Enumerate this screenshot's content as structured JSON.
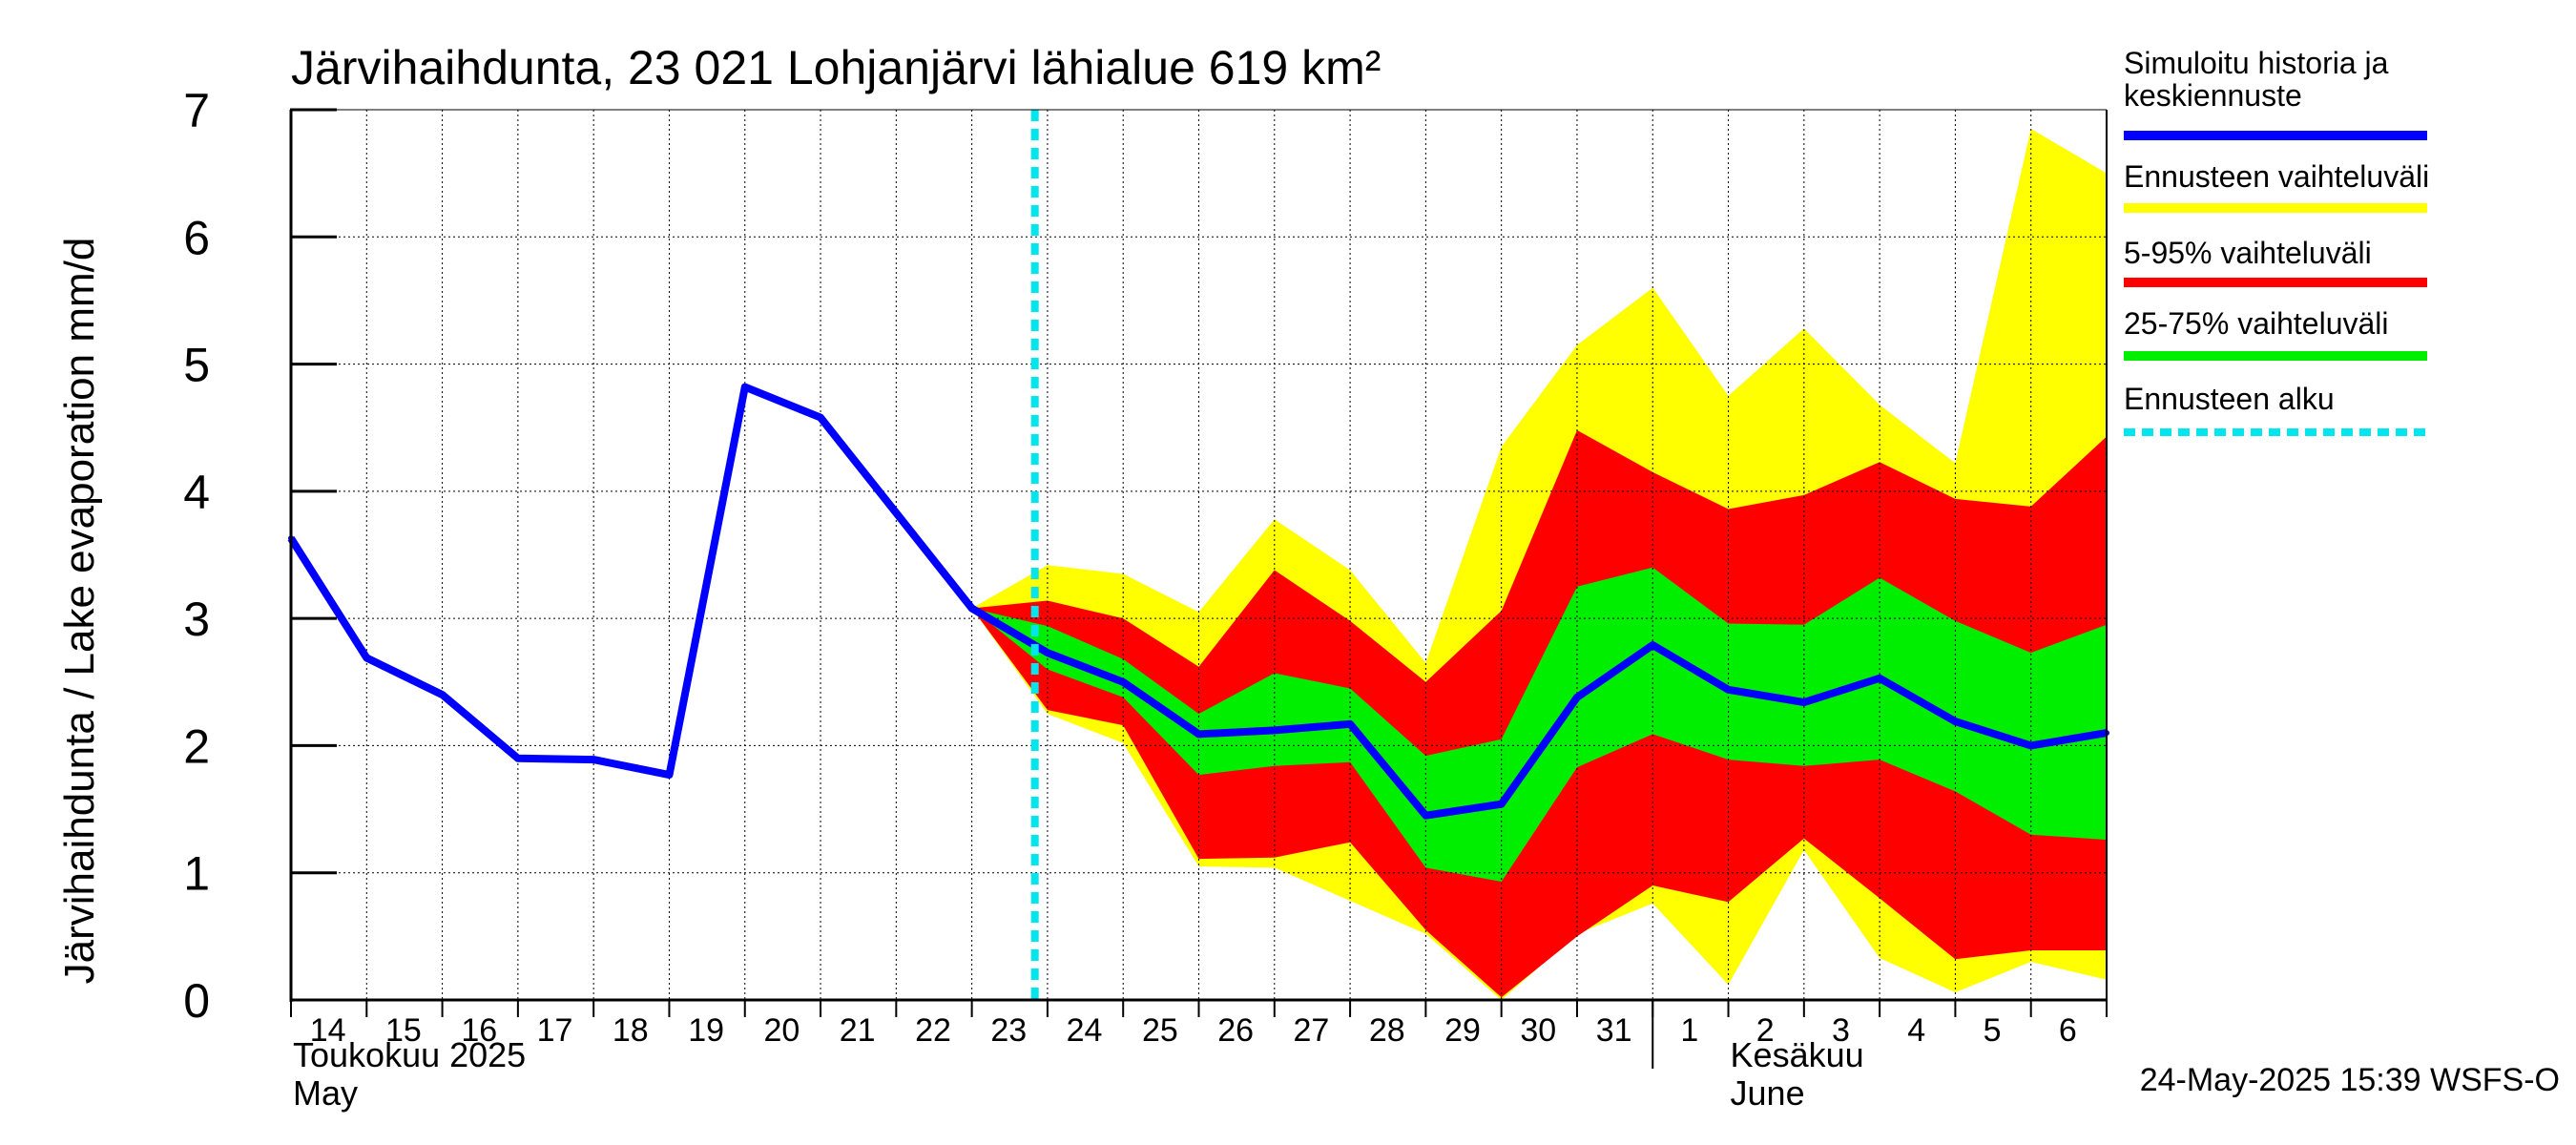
{
  "chart_data": {
    "type": "area",
    "title": "Järvihaihdunta, 23 021 Lohjanjärvi lähialue 619 km²",
    "ylabel": "Järvihaihdunta / Lake evaporation   mm/d",
    "ylim": [
      0,
      7
    ],
    "yticks": [
      "0",
      "1",
      "2",
      "3",
      "4",
      "5",
      "6",
      "7"
    ],
    "grid": true,
    "legend_position": "right",
    "x_start": "2025-05-14",
    "x_end": "2025-06-07",
    "day_labels": [
      "14",
      "15",
      "16",
      "17",
      "18",
      "19",
      "20",
      "21",
      "22",
      "23",
      "24",
      "25",
      "26",
      "27",
      "28",
      "29",
      "30",
      "31",
      "1",
      "2",
      "3",
      "4",
      "5",
      "6"
    ],
    "month_labels": [
      {
        "line1": "Toukokuu  2025",
        "line2": "May",
        "date": "2025-05-14"
      },
      {
        "line1": "Kesäkuu",
        "line2": "June",
        "date": "2025-06-02"
      }
    ],
    "month_separator": "2025-06-01",
    "forecast_start": "2025-05-23T20:00",
    "series": [
      {
        "name": "Simuloitu historia ja keskiennuste",
        "color": "#0000ff",
        "dates": [
          "2025-05-14",
          "2025-05-15",
          "2025-05-16",
          "2025-05-17",
          "2025-05-18",
          "2025-05-19",
          "2025-05-20",
          "2025-05-21",
          "2025-05-22",
          "2025-05-23",
          "2025-05-24",
          "2025-05-25",
          "2025-05-26",
          "2025-05-27",
          "2025-05-28",
          "2025-05-29",
          "2025-05-30",
          "2025-05-31",
          "2025-06-01",
          "2025-06-02",
          "2025-06-03",
          "2025-06-04",
          "2025-06-05",
          "2025-06-06",
          "2025-06-07"
        ],
        "values": [
          3.63,
          2.69,
          2.4,
          1.9,
          1.89,
          1.77,
          4.82,
          4.58,
          3.83,
          3.08,
          2.73,
          2.5,
          2.09,
          2.12,
          2.17,
          1.45,
          1.54,
          2.38,
          2.79,
          2.44,
          2.34,
          2.53,
          2.19,
          2.0,
          2.1
        ]
      },
      {
        "name": "Ennusteen vaihteluväli",
        "color": "#ffff00",
        "dates": [
          "2025-05-23",
          "2025-05-24",
          "2025-05-25",
          "2025-05-26",
          "2025-05-27",
          "2025-05-28",
          "2025-05-29",
          "2025-05-30",
          "2025-05-31",
          "2025-06-01",
          "2025-06-02",
          "2025-06-03",
          "2025-06-04",
          "2025-06-05",
          "2025-06-06",
          "2025-06-07"
        ],
        "upper": [
          3.08,
          3.42,
          3.35,
          3.05,
          3.78,
          3.38,
          2.65,
          4.35,
          5.15,
          5.6,
          4.75,
          5.28,
          4.68,
          4.22,
          6.85,
          6.5
        ],
        "lower": [
          3.08,
          2.25,
          2.02,
          1.05,
          1.04,
          0.78,
          0.52,
          0.0,
          0.52,
          0.76,
          0.12,
          1.18,
          0.33,
          0.06,
          0.3,
          0.16
        ]
      },
      {
        "name": "5-95% vaihteluväli",
        "color": "#ff0000",
        "dates": [
          "2025-05-23",
          "2025-05-24",
          "2025-05-25",
          "2025-05-26",
          "2025-05-27",
          "2025-05-28",
          "2025-05-29",
          "2025-05-30",
          "2025-05-31",
          "2025-06-01",
          "2025-06-02",
          "2025-06-03",
          "2025-06-04",
          "2025-06-05",
          "2025-06-06",
          "2025-06-07"
        ],
        "upper": [
          3.08,
          3.14,
          3.0,
          2.62,
          3.38,
          2.98,
          2.5,
          3.06,
          4.48,
          4.15,
          3.86,
          3.97,
          4.23,
          3.94,
          3.88,
          4.43
        ],
        "lower": [
          3.08,
          2.28,
          2.16,
          1.11,
          1.12,
          1.24,
          0.55,
          0.02,
          0.5,
          0.9,
          0.77,
          1.27,
          0.8,
          0.32,
          0.39,
          0.39
        ]
      },
      {
        "name": "25-75% vaihteluväli",
        "color": "#00ee00",
        "dates": [
          "2025-05-23",
          "2025-05-24",
          "2025-05-25",
          "2025-05-26",
          "2025-05-27",
          "2025-05-28",
          "2025-05-29",
          "2025-05-30",
          "2025-05-31",
          "2025-06-01",
          "2025-06-02",
          "2025-06-03",
          "2025-06-04",
          "2025-06-05",
          "2025-06-06",
          "2025-06-07"
        ],
        "upper": [
          3.08,
          2.94,
          2.68,
          2.25,
          2.57,
          2.45,
          1.92,
          2.05,
          3.25,
          3.4,
          2.96,
          2.95,
          3.32,
          2.98,
          2.73,
          2.95
        ],
        "lower": [
          3.08,
          2.6,
          2.38,
          1.77,
          1.84,
          1.87,
          1.04,
          0.93,
          1.83,
          2.09,
          1.89,
          1.84,
          1.89,
          1.64,
          1.3,
          1.26
        ]
      },
      {
        "name": "Ennusteen alku",
        "color": "#00e5ee"
      }
    ]
  },
  "legend": {
    "items": [
      {
        "label_line1": "Simuloitu historia ja",
        "label_line2": "keskiennuste",
        "color": "#0000ff",
        "style": "solid"
      },
      {
        "label_line1": "Ennusteen vaihteluväli",
        "label_line2": "",
        "color": "#ffff00",
        "style": "solid"
      },
      {
        "label_line1": "5-95% vaihteluväli",
        "label_line2": "",
        "color": "#ff0000",
        "style": "solid"
      },
      {
        "label_line1": "25-75% vaihteluväli",
        "label_line2": "",
        "color": "#00ee00",
        "style": "solid"
      },
      {
        "label_line1": "Ennusteen alku",
        "label_line2": "",
        "color": "#00e5ee",
        "style": "dashed"
      }
    ]
  },
  "footer": {
    "timestamp": "24-May-2025 15:39 WSFS-O"
  }
}
